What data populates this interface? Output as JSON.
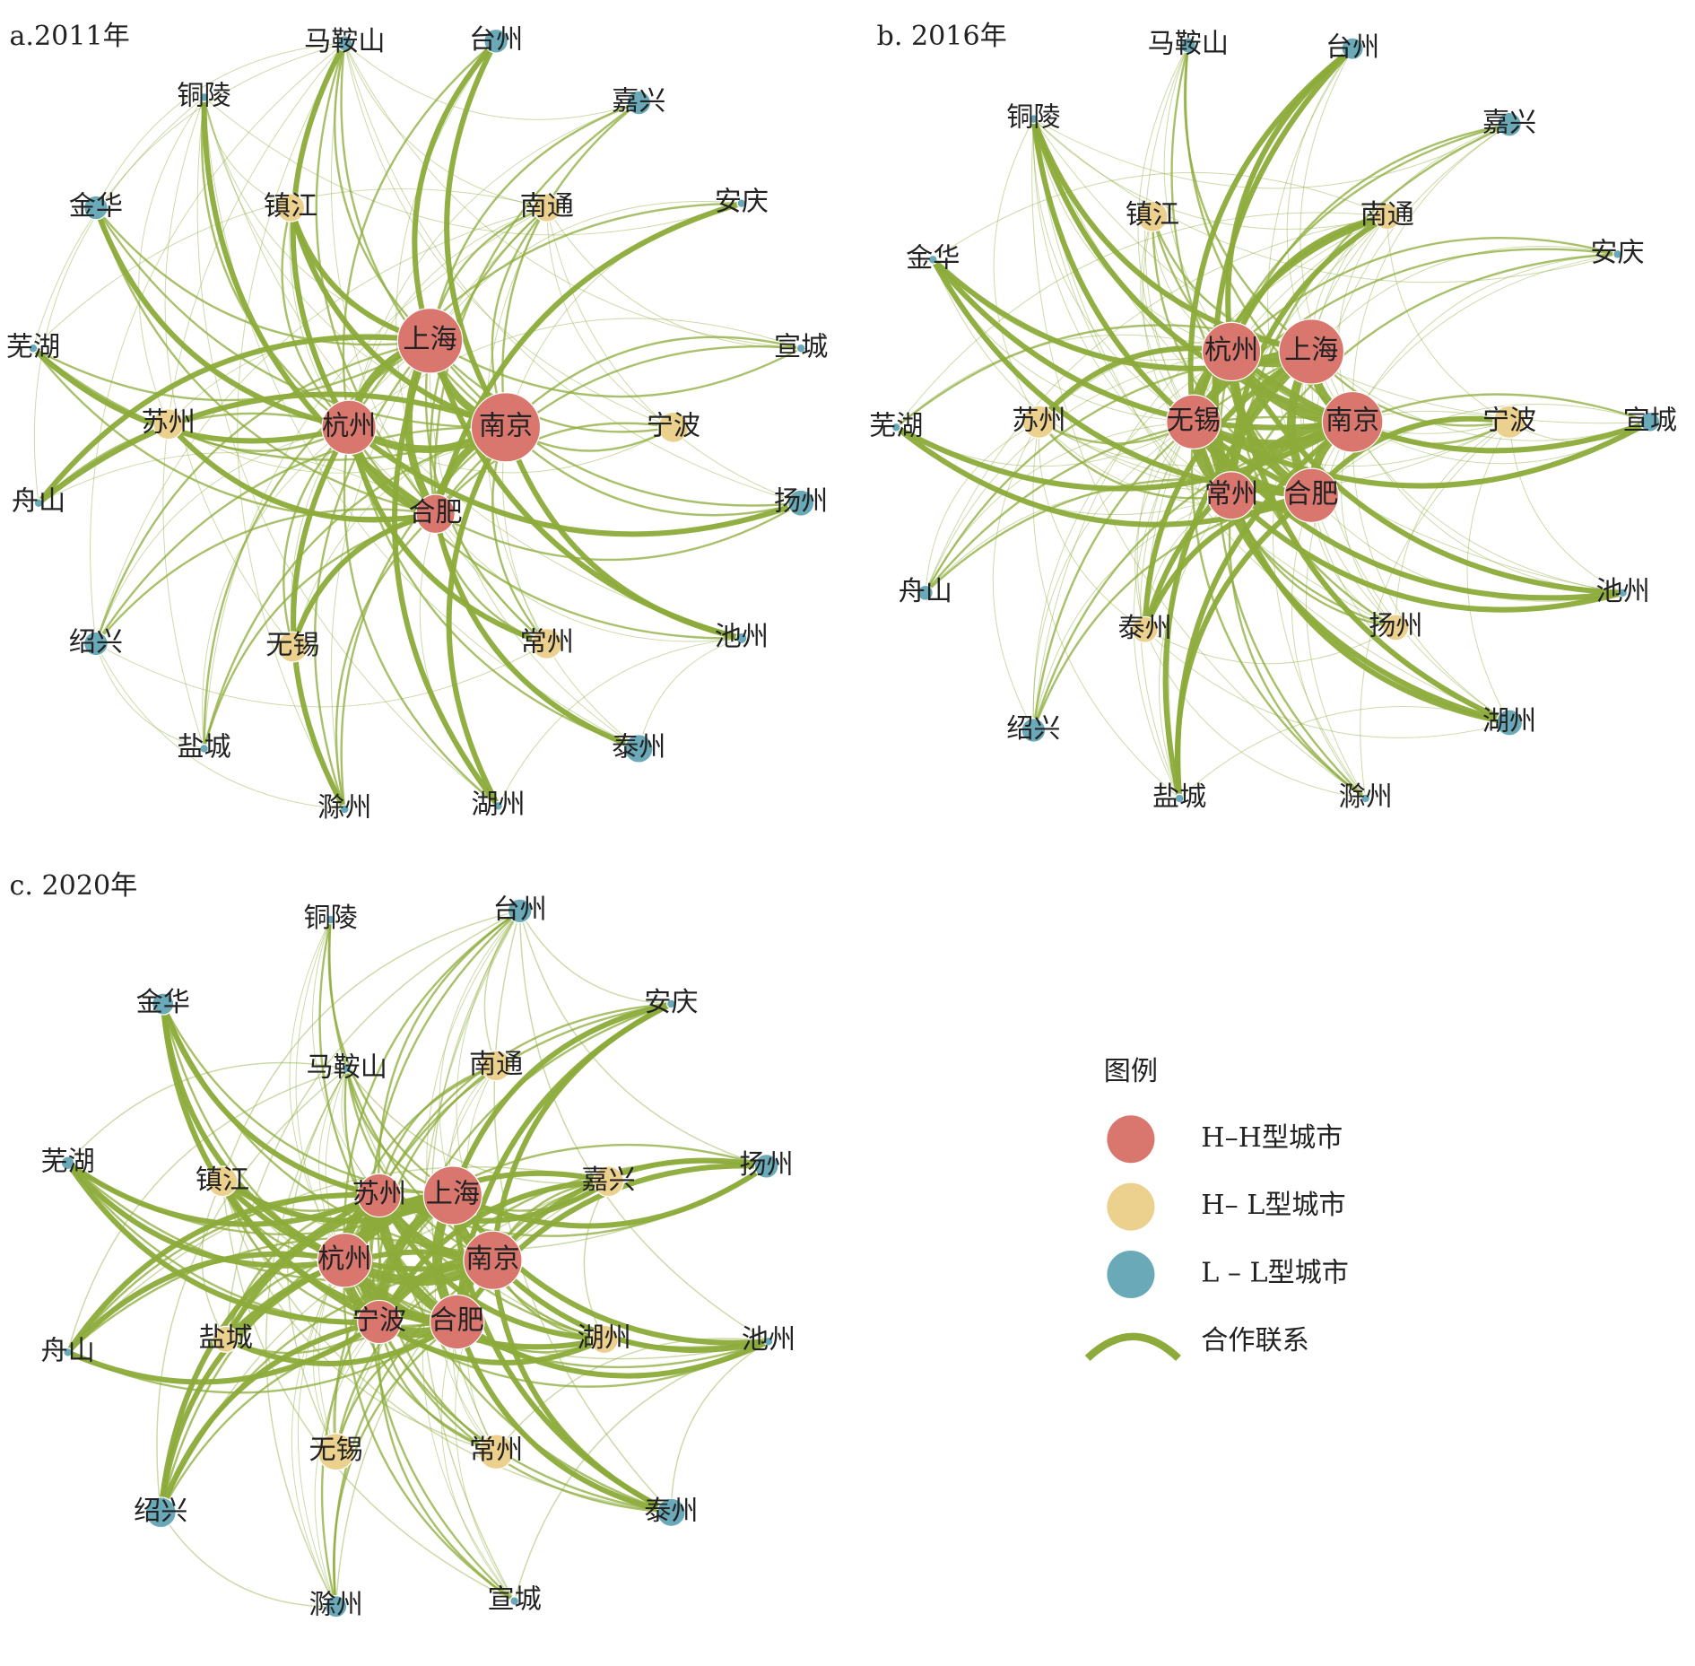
{
  "panels": [
    {
      "title": "a.2011年",
      "nodes": [
        {
          "label": "马鞍山",
          "color": "#6aaab8"
        },
        {
          "label": "台州",
          "color": "#6aaab8"
        },
        {
          "label": "嘉兴",
          "color": "#6aaab8"
        },
        {
          "label": "铜陵",
          "color": "#6aaab8"
        },
        {
          "label": "金华",
          "color": "#6aaab8"
        },
        {
          "label": "镇江",
          "color": "#ecd08e"
        },
        {
          "label": "南通",
          "color": "#ecd08e"
        },
        {
          "label": "安庆",
          "color": "#6aaab8"
        },
        {
          "label": "芜湖",
          "color": "#6aaab8"
        },
        {
          "label": "上海",
          "color": "#d9776f"
        },
        {
          "label": "宣城",
          "color": "#6aaab8"
        },
        {
          "label": "苏州",
          "color": "#ecd08e"
        },
        {
          "label": "杭州",
          "color": "#d9776f"
        },
        {
          "label": "南京",
          "color": "#d9776f"
        },
        {
          "label": "宁波",
          "color": "#ecd08e"
        },
        {
          "label": "合肥",
          "color": "#d9776f"
        },
        {
          "label": "扬州",
          "color": "#6aaab8"
        },
        {
          "label": "舟山",
          "color": "#6aaab8"
        },
        {
          "label": "绍兴",
          "color": "#6aaab8"
        },
        {
          "label": "无锡",
          "color": "#ecd08e"
        },
        {
          "label": "常州",
          "color": "#ecd08e"
        },
        {
          "label": "池州",
          "color": "#6aaab8"
        },
        {
          "label": "盐城",
          "color": "#6aaab8"
        },
        {
          "label": "泰州",
          "color": "#6aaab8"
        },
        {
          "label": "滁州",
          "color": "#6aaab8"
        },
        {
          "label": "湖州",
          "color": "#6aaab8"
        }
      ]
    },
    {
      "title": "b. 2016年",
      "nodes": [
        {
          "label": "马鞍山",
          "color": "#6aaab8"
        },
        {
          "label": "台州",
          "color": "#6aaab8"
        },
        {
          "label": "铜陵",
          "color": "#6aaab8"
        },
        {
          "label": "嘉兴",
          "color": "#6aaab8"
        },
        {
          "label": "镇江",
          "color": "#ecd08e"
        },
        {
          "label": "南通",
          "color": "#ecd08e"
        },
        {
          "label": "金华",
          "color": "#6aaab8"
        },
        {
          "label": "安庆",
          "color": "#6aaab8"
        },
        {
          "label": "杭州",
          "color": "#d9776f"
        },
        {
          "label": "上海",
          "color": "#d9776f"
        },
        {
          "label": "芜湖",
          "color": "#6aaab8"
        },
        {
          "label": "苏州",
          "color": "#ecd08e"
        },
        {
          "label": "无锡",
          "color": "#d9776f"
        },
        {
          "label": "南京",
          "color": "#d9776f"
        },
        {
          "label": "宁波",
          "color": "#ecd08e"
        },
        {
          "label": "宣城",
          "color": "#6aaab8"
        },
        {
          "label": "常州",
          "color": "#d9776f"
        },
        {
          "label": "合肥",
          "color": "#d9776f"
        },
        {
          "label": "舟山",
          "color": "#6aaab8"
        },
        {
          "label": "池州",
          "color": "#6aaab8"
        },
        {
          "label": "泰州",
          "color": "#ecd08e"
        },
        {
          "label": "扬州",
          "color": "#ecd08e"
        },
        {
          "label": "绍兴",
          "color": "#6aaab8"
        },
        {
          "label": "湖州",
          "color": "#6aaab8"
        },
        {
          "label": "盐城",
          "color": "#6aaab8"
        },
        {
          "label": "滁州",
          "color": "#6aaab8"
        }
      ]
    },
    {
      "title": "c. 2020年",
      "nodes": [
        {
          "label": "铜陵",
          "color": "#6aaab8"
        },
        {
          "label": "台州",
          "color": "#6aaab8"
        },
        {
          "label": "金华",
          "color": "#6aaab8"
        },
        {
          "label": "安庆",
          "color": "#6aaab8"
        },
        {
          "label": "马鞍山",
          "color": "#6aaab8"
        },
        {
          "label": "南通",
          "color": "#ecd08e"
        },
        {
          "label": "芜湖",
          "color": "#6aaab8"
        },
        {
          "label": "镇江",
          "color": "#ecd08e"
        },
        {
          "label": "苏州",
          "color": "#d9776f"
        },
        {
          "label": "上海",
          "color": "#d9776f"
        },
        {
          "label": "嘉兴",
          "color": "#ecd08e"
        },
        {
          "label": "扬州",
          "color": "#6aaab8"
        },
        {
          "label": "杭州",
          "color": "#d9776f"
        },
        {
          "label": "南京",
          "color": "#d9776f"
        },
        {
          "label": "舟山",
          "color": "#6aaab8"
        },
        {
          "label": "盐城",
          "color": "#ecd08e"
        },
        {
          "label": "宁波",
          "color": "#d9776f"
        },
        {
          "label": "合肥",
          "color": "#d9776f"
        },
        {
          "label": "湖州",
          "color": "#ecd08e"
        },
        {
          "label": "池州",
          "color": "#6aaab8"
        },
        {
          "label": "无锡",
          "color": "#ecd08e"
        },
        {
          "label": "常州",
          "color": "#ecd08e"
        },
        {
          "label": "绍兴",
          "color": "#6aaab8"
        },
        {
          "label": "泰州",
          "color": "#6aaab8"
        },
        {
          "label": "滁州",
          "color": "#6aaab8"
        },
        {
          "label": "宣城",
          "color": "#6aaab8"
        }
      ]
    }
  ],
  "legend": {
    "title": "图例",
    "items": [
      {
        "label": "H–H型城市",
        "color": "#d9776f"
      },
      {
        "label": "H– L型城市",
        "color": "#ecd08e"
      },
      {
        "label": "L – L型城市",
        "color": "#6aaab8"
      },
      {
        "label": "合作联系",
        "color": "#8cab3a"
      }
    ]
  }
}
